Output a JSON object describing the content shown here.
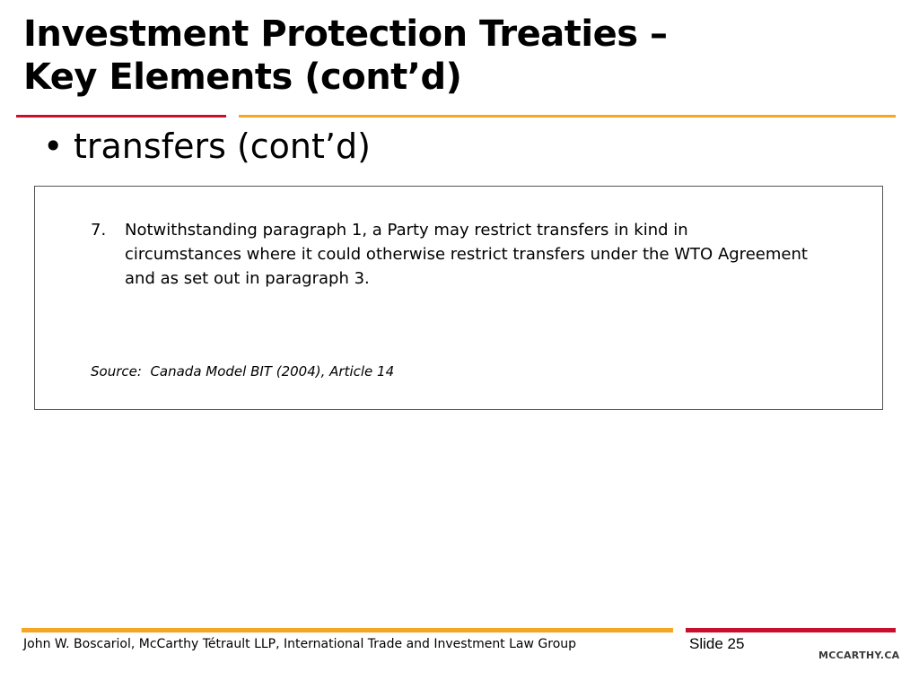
{
  "slide": {
    "title_line1": "Investment Protection Treaties –",
    "title_line2": "Key Elements (cont’d)",
    "bullet_marker": "•",
    "bullet_text": "transfers (cont’d)"
  },
  "quote": {
    "paragraph_number": "7.",
    "paragraph_text": "Notwithstanding paragraph 1, a Party may restrict transfers in kind in circumstances where it could otherwise restrict transfers under the WTO Agreement and as set out in paragraph 3.",
    "source": "Source:  Canada Model BIT (2004), Article 14"
  },
  "footer": {
    "presenter": "John W. Boscariol, McCarthy Tétrault LLP, International Trade and Investment Law Group",
    "slide_number": "Slide 25",
    "logo_text": "MCCARTHY.CA"
  },
  "colors": {
    "accent_red": "#c8102e",
    "accent_gold": "#f5a623"
  }
}
